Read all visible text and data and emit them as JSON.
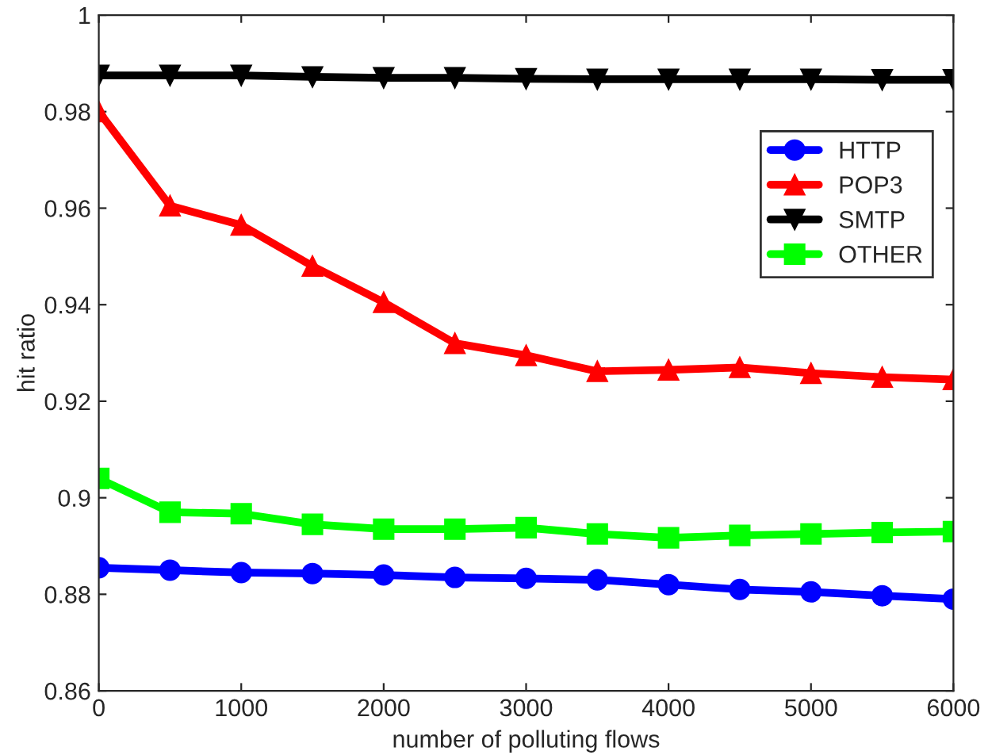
{
  "chart_data": {
    "type": "line",
    "xlabel": "number of polluting flows",
    "ylabel": "hit ratio",
    "x": [
      0,
      500,
      1000,
      1500,
      2000,
      2500,
      3000,
      3500,
      4000,
      4500,
      5000,
      5500,
      6000
    ],
    "series": [
      {
        "name": "HTTP",
        "color": "#0000ff",
        "marker": "circle",
        "values": [
          0.8855,
          0.885,
          0.8845,
          0.8843,
          0.884,
          0.8835,
          0.8833,
          0.883,
          0.882,
          0.881,
          0.8805,
          0.8797,
          0.879
        ]
      },
      {
        "name": "POP3",
        "color": "#ff0000",
        "marker": "triangle",
        "values": [
          0.98,
          0.9605,
          0.9565,
          0.948,
          0.9405,
          0.932,
          0.9295,
          0.9262,
          0.9265,
          0.927,
          0.9258,
          0.925,
          0.9245
        ]
      },
      {
        "name": "SMTP",
        "color": "#000000",
        "marker": "triangle_down",
        "values": [
          0.9875,
          0.9875,
          0.9875,
          0.9872,
          0.987,
          0.987,
          0.9868,
          0.9867,
          0.9867,
          0.9867,
          0.9867,
          0.9866,
          0.9866
        ]
      },
      {
        "name": "OTHER",
        "color": "#00ff00",
        "marker": "square",
        "values": [
          0.904,
          0.897,
          0.8967,
          0.8945,
          0.8935,
          0.8935,
          0.8938,
          0.8925,
          0.8917,
          0.8922,
          0.8925,
          0.8928,
          0.893
        ]
      }
    ],
    "xlim": [
      0,
      6000
    ],
    "xticks": [
      0,
      1000,
      2000,
      3000,
      4000,
      5000,
      6000
    ],
    "ylim": [
      0.86,
      1
    ],
    "yticks": [
      0.86,
      0.88,
      {
        "value": 0.9,
        "label": "0.9"
      },
      0.92,
      0.94,
      0.96,
      0.98,
      {
        "value": 1,
        "label": "1"
      }
    ],
    "grid": false,
    "legend": "right",
    "line_style": "solid"
  }
}
